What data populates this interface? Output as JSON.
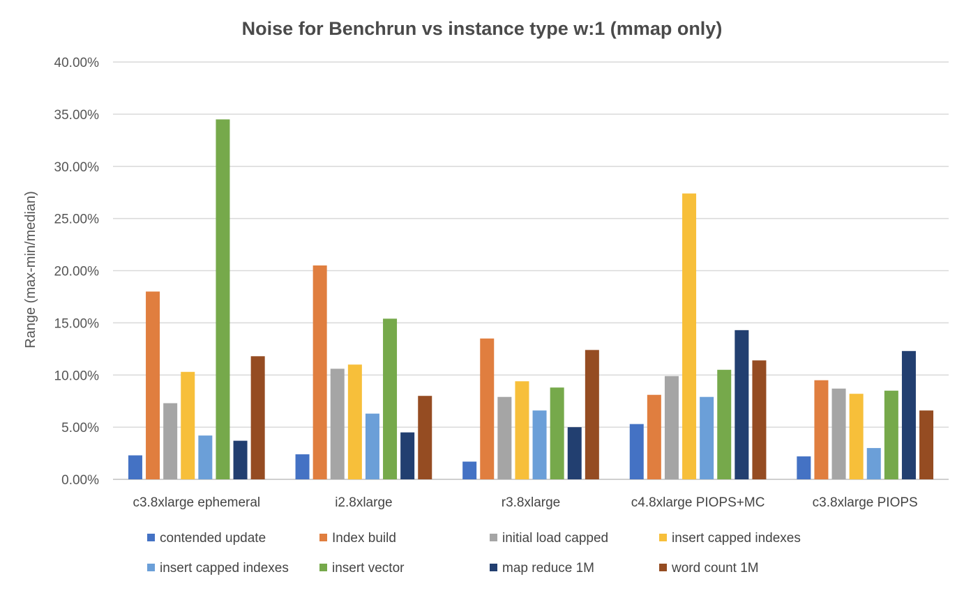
{
  "chart_data": {
    "type": "bar",
    "title": "Noise for Benchrun vs instance type w:1 (mmap only)",
    "xlabel": "",
    "ylabel": "Range (max-min/median)",
    "ylim": [
      0,
      0.4
    ],
    "yticks": [
      0,
      0.05,
      0.1,
      0.15,
      0.2,
      0.25,
      0.3,
      0.35,
      0.4
    ],
    "ytick_labels": [
      "0.00%",
      "5.00%",
      "10.00%",
      "15.00%",
      "20.00%",
      "25.00%",
      "30.00%",
      "35.00%",
      "40.00%"
    ],
    "grid": true,
    "legend_position": "bottom",
    "categories": [
      "c3.8xlarge ephemeral",
      "i2.8xlarge",
      "r3.8xlarge",
      "c4.8xlarge PIOPS+MC",
      "c3.8xlarge PIOPS"
    ],
    "series": [
      {
        "name": "contended update",
        "color": "#4472c4",
        "values": [
          0.023,
          0.024,
          0.017,
          0.053,
          0.022
        ]
      },
      {
        "name": "Index build",
        "color": "#e07e3f",
        "values": [
          0.18,
          0.205,
          0.135,
          0.081,
          0.095
        ]
      },
      {
        "name": "initial load capped",
        "color": "#a5a5a5",
        "values": [
          0.073,
          0.106,
          0.079,
          0.099,
          0.087
        ]
      },
      {
        "name": "insert capped indexes",
        "color": "#f7bf3a",
        "values": [
          0.103,
          0.11,
          0.094,
          0.274,
          0.082
        ]
      },
      {
        "name": "insert capped indexes",
        "color": "#6b9fd8",
        "values": [
          0.042,
          0.063,
          0.066,
          0.079,
          0.03
        ]
      },
      {
        "name": "insert vector",
        "color": "#76a94b",
        "values": [
          0.345,
          0.154,
          0.088,
          0.105,
          0.085
        ]
      },
      {
        "name": "map reduce 1M",
        "color": "#223f70",
        "values": [
          0.037,
          0.045,
          0.05,
          0.143,
          0.123
        ]
      },
      {
        "name": "word count 1M",
        "color": "#954c22",
        "values": [
          0.118,
          0.08,
          0.124,
          0.114,
          0.066
        ]
      }
    ]
  }
}
